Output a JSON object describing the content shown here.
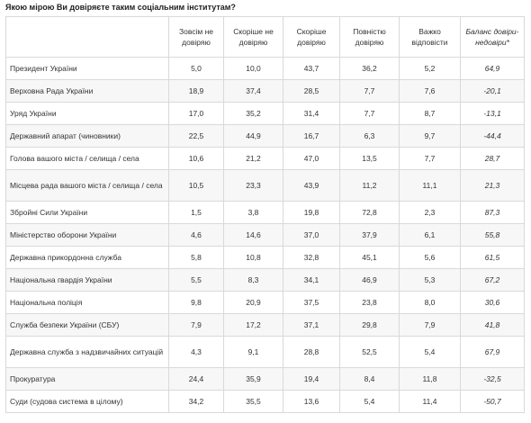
{
  "title": "Якою мірою Ви довіряєте таким соціальним інститутам?",
  "columns": [
    "",
    "Зовсім не довіряю",
    "Скоріше не довіряю",
    "Скоріше довіряю",
    "Повністю довіряю",
    "Важко відповісти",
    "Баланс довіри-недовіри*"
  ],
  "rows": [
    {
      "name": "Президент України",
      "values": [
        "5,0",
        "10,0",
        "43,7",
        "36,2",
        "5,2",
        "64,9"
      ]
    },
    {
      "name": "Верховна Рада України",
      "values": [
        "18,9",
        "37,4",
        "28,5",
        "7,7",
        "7,6",
        "-20,1"
      ]
    },
    {
      "name": "Уряд України",
      "values": [
        "17,0",
        "35,2",
        "31,4",
        "7,7",
        "8,7",
        "-13,1"
      ]
    },
    {
      "name": "Державний апарат (чиновники)",
      "values": [
        "22,5",
        "44,9",
        "16,7",
        "6,3",
        "9,7",
        "-44,4"
      ]
    },
    {
      "name": "Голова вашого міста / селища / села",
      "values": [
        "10,6",
        "21,2",
        "47,0",
        "13,5",
        "7,7",
        "28,7"
      ]
    },
    {
      "name": "Місцева рада вашого міста / селища / села",
      "values": [
        "10,5",
        "23,3",
        "43,9",
        "11,2",
        "11,1",
        "21,3"
      ]
    },
    {
      "name": "Збройні Сили України",
      "values": [
        "1,5",
        "3,8",
        "19,8",
        "72,8",
        "2,3",
        "87,3"
      ]
    },
    {
      "name": "Міністерство оборони України",
      "values": [
        "4,6",
        "14,6",
        "37,0",
        "37,9",
        "6,1",
        "55,8"
      ]
    },
    {
      "name": "Державна прикордонна служба",
      "values": [
        "5,8",
        "10,8",
        "32,8",
        "45,1",
        "5,6",
        "61,5"
      ]
    },
    {
      "name": "Національна гвардія України",
      "values": [
        "5,5",
        "8,3",
        "34,1",
        "46,9",
        "5,3",
        "67,2"
      ]
    },
    {
      "name": "Національна поліція",
      "values": [
        "9,8",
        "20,9",
        "37,5",
        "23,8",
        "8,0",
        "30,6"
      ]
    },
    {
      "name": "Служба безпеки України (СБУ)",
      "values": [
        "7,9",
        "17,2",
        "37,1",
        "29,8",
        "7,9",
        "41,8"
      ]
    },
    {
      "name": "Державна служба з надзвичайних ситуацій",
      "values": [
        "4,3",
        "9,1",
        "28,8",
        "52,5",
        "5,4",
        "67,9"
      ]
    },
    {
      "name": "Прокуратура",
      "values": [
        "24,4",
        "35,9",
        "19,4",
        "8,4",
        "11,8",
        "-32,5"
      ]
    },
    {
      "name": "Суди (судова система в цілому)",
      "values": [
        "34,2",
        "35,5",
        "13,6",
        "5,4",
        "11,4",
        "-50,7"
      ]
    }
  ]
}
